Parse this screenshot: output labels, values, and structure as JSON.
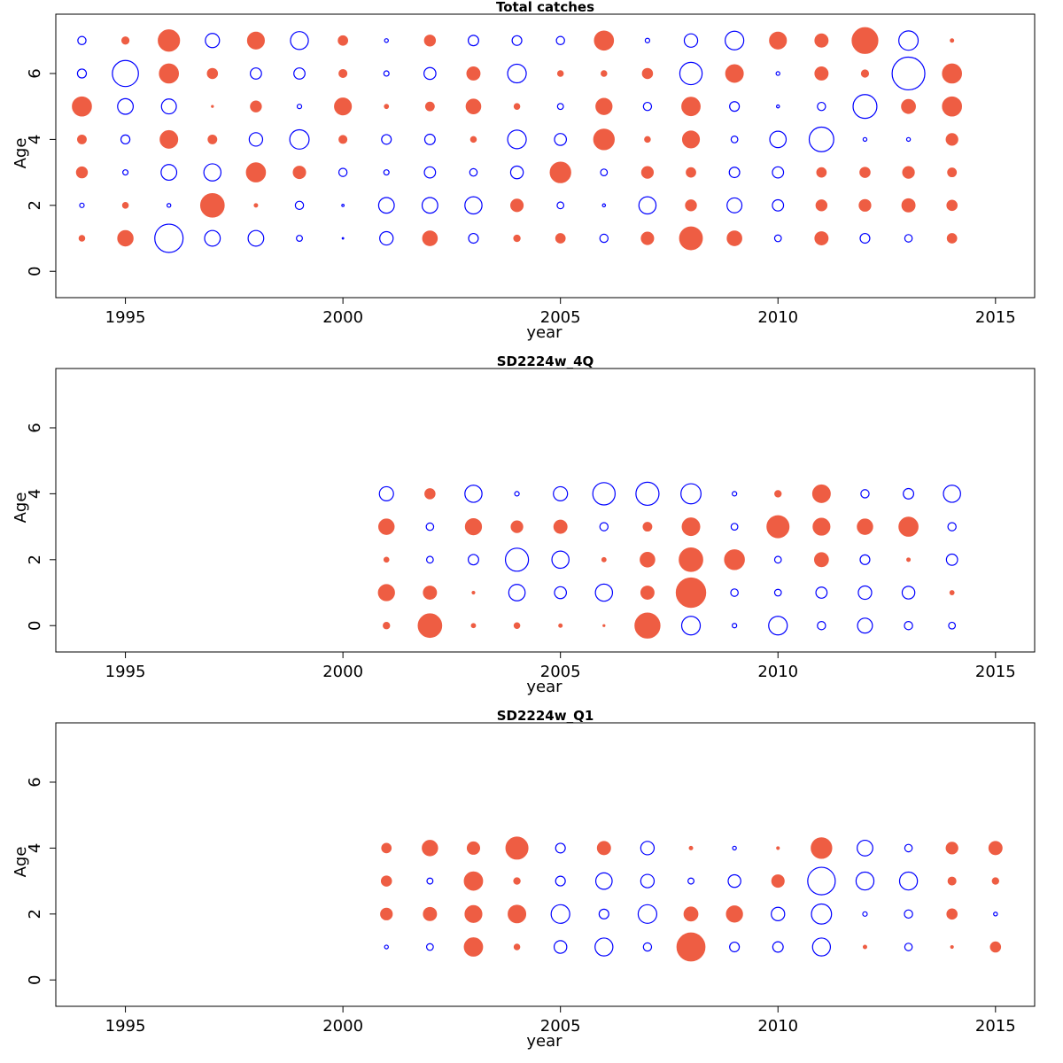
{
  "colors": {
    "positive": "#EE5D43",
    "negative": "#0000FF"
  },
  "chart_data": [
    {
      "type": "scatter",
      "title": "Total catches",
      "xlabel": "year",
      "ylabel": "Age",
      "xlim": [
        1993.4,
        2015.9
      ],
      "ylim": [
        -0.8,
        7.8
      ],
      "xticks": [
        1995,
        2000,
        2005,
        2010,
        2015
      ],
      "yticks": [
        0,
        2,
        4,
        6
      ],
      "years": [
        1994,
        1995,
        1996,
        1997,
        1998,
        1999,
        2000,
        2001,
        2002,
        2003,
        2004,
        2005,
        2006,
        2007,
        2008,
        2009,
        2010,
        2011,
        2012,
        2013,
        2014
      ],
      "ages": [
        1,
        2,
        3,
        4,
        5,
        6,
        7
      ],
      "residuals": [
        [
          0.8,
          2.1,
          -3.8,
          -2.1,
          -2.1,
          -0.8,
          -0.2,
          -1.8,
          2.0,
          -1.3,
          0.9,
          1.3,
          -1.1,
          1.7,
          3.1,
          2.0,
          -0.9,
          1.8,
          -1.3,
          -1.0,
          1.3
        ],
        [
          -0.6,
          0.8,
          -0.5,
          3.2,
          0.5,
          -1.1,
          -0.3,
          -2.1,
          -2.1,
          -2.3,
          1.7,
          -0.9,
          -0.4,
          -2.3,
          1.5,
          -2.0,
          -1.5,
          1.5,
          1.6,
          1.8,
          1.4
        ],
        [
          1.5,
          -0.7,
          -2.1,
          -2.3,
          2.6,
          1.7,
          -1.1,
          -0.7,
          -1.5,
          -1.0,
          -1.7,
          2.8,
          -0.9,
          1.6,
          1.3,
          -1.4,
          -1.5,
          1.3,
          1.4,
          1.6,
          1.2
        ],
        [
          1.2,
          -1.2,
          2.4,
          1.2,
          -1.8,
          -2.6,
          1.1,
          -1.3,
          -1.4,
          0.8,
          -2.5,
          -1.6,
          2.8,
          0.8,
          2.3,
          -0.9,
          -2.2,
          -3.3,
          -0.5,
          -0.5,
          1.6
        ],
        [
          2.6,
          -2.1,
          -2.0,
          0.3,
          1.5,
          -0.6,
          2.3,
          0.6,
          1.2,
          2.0,
          0.8,
          -0.8,
          2.2,
          -1.1,
          2.5,
          -1.3,
          -0.4,
          -1.1,
          -3.2,
          1.9,
          2.6
        ],
        [
          -1.2,
          -3.5,
          2.6,
          1.4,
          -1.5,
          -1.5,
          1.1,
          -0.7,
          -1.6,
          1.8,
          -2.5,
          0.8,
          0.8,
          1.4,
          -3.0,
          2.4,
          -0.5,
          1.8,
          1.0,
          -4.4,
          2.6
        ],
        [
          -1.1,
          1.0,
          2.9,
          -1.9,
          2.3,
          -2.4,
          1.3,
          -0.5,
          1.5,
          -1.4,
          -1.3,
          -1.1,
          2.6,
          -0.6,
          -1.8,
          -2.5,
          2.3,
          1.8,
          3.5,
          -2.6,
          0.5
        ]
      ]
    },
    {
      "type": "scatter",
      "title": "SD2224w_4Q",
      "xlabel": "year",
      "ylabel": "Age",
      "xlim": [
        1993.4,
        2015.9
      ],
      "ylim": [
        -0.8,
        7.8
      ],
      "xticks": [
        1995,
        2000,
        2005,
        2010,
        2015
      ],
      "yticks": [
        0,
        2,
        4,
        6
      ],
      "years": [
        2001,
        2002,
        2003,
        2004,
        2005,
        2006,
        2007,
        2008,
        2009,
        2010,
        2011,
        2012,
        2013,
        2014
      ],
      "ages": [
        0,
        1,
        2,
        3,
        4
      ],
      "residuals": [
        [
          0.9,
          3.2,
          0.6,
          0.8,
          0.5,
          0.3,
          3.4,
          -2.5,
          -0.6,
          -2.5,
          -1.1,
          -2.0,
          -1.1,
          -0.9
        ],
        [
          2.2,
          1.8,
          0.4,
          -2.2,
          -1.6,
          -2.3,
          1.8,
          4.0,
          -1.0,
          -0.9,
          -1.5,
          -1.8,
          -1.7,
          0.6
        ],
        [
          0.7,
          -0.9,
          -1.4,
          -3.1,
          -2.3,
          0.6,
          2.0,
          3.2,
          2.7,
          -0.9,
          1.9,
          -1.3,
          0.5,
          -1.5
        ],
        [
          2.1,
          -1.0,
          2.2,
          1.6,
          1.8,
          -1.1,
          1.2,
          2.4,
          -0.9,
          3.0,
          2.3,
          2.1,
          2.6,
          -1.1
        ],
        [
          -1.9,
          1.4,
          -2.3,
          -0.6,
          -1.9,
          -3.0,
          -3.1,
          -2.7,
          -0.6,
          0.9,
          2.4,
          -1.1,
          -1.4,
          -2.3
        ]
      ]
    },
    {
      "type": "scatter",
      "title": "SD2224w_Q1",
      "xlabel": "year",
      "ylabel": "Age",
      "xlim": [
        1993.4,
        2015.9
      ],
      "ylim": [
        -0.8,
        7.8
      ],
      "xticks": [
        1995,
        2000,
        2005,
        2010,
        2015
      ],
      "yticks": [
        0,
        2,
        4,
        6
      ],
      "years": [
        2001,
        2002,
        2003,
        2004,
        2005,
        2006,
        2007,
        2008,
        2009,
        2010,
        2011,
        2012,
        2013,
        2014,
        2015
      ],
      "ages": [
        1,
        2,
        3,
        4
      ],
      "residuals": [
        [
          -0.5,
          -0.9,
          2.5,
          0.8,
          -1.7,
          -2.4,
          -1.1,
          3.8,
          -1.3,
          -1.4,
          -2.4,
          0.5,
          -1.0,
          0.4,
          1.4
        ],
        [
          1.6,
          1.8,
          2.3,
          2.4,
          -2.5,
          -1.3,
          -2.5,
          1.9,
          2.2,
          -1.8,
          -2.7,
          -0.6,
          -1.1,
          1.4,
          -0.5
        ],
        [
          1.4,
          -0.8,
          2.5,
          0.9,
          -1.3,
          -2.2,
          -1.8,
          -0.8,
          -1.7,
          1.7,
          -3.7,
          -2.4,
          -2.4,
          1.1,
          0.9
        ],
        [
          1.3,
          2.1,
          1.7,
          3.0,
          -1.3,
          1.8,
          -1.8,
          0.5,
          -0.5,
          0.4,
          2.8,
          -2.1,
          -1.0,
          1.6,
          1.8
        ]
      ]
    }
  ]
}
